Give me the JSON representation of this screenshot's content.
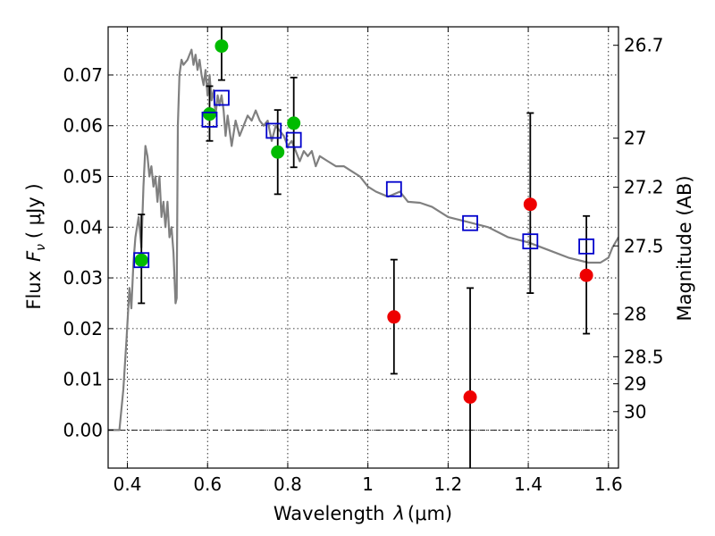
{
  "chart_data": {
    "type": "scatter",
    "xlabel_text": "Wavelength",
    "xlabel_symbol": "λ",
    "xlabel_unit": "(μm)",
    "ylabel_text": "Flux",
    "ylabel_symbol": "F",
    "ylabel_subscript": "ν",
    "ylabel_unit": "( μJy )",
    "y2label": "Magnitude (AB)",
    "xlim": [
      0.352,
      1.625
    ],
    "ylim": [
      -0.0075,
      0.0795
    ],
    "grid": "dotted",
    "x_ticks": [
      0.4,
      0.6,
      0.8,
      1.0,
      1.2,
      1.4,
      1.6
    ],
    "x_tick_labels": [
      "0.4",
      "0.6",
      "0.8",
      "1",
      "1.2",
      "1.4",
      "1.6"
    ],
    "y_ticks": [
      0.0,
      0.01,
      0.02,
      0.03,
      0.04,
      0.05,
      0.06,
      0.07
    ],
    "y_tick_labels": [
      "0.00",
      "0.01",
      "0.02",
      "0.03",
      "0.04",
      "0.05",
      "0.06",
      "0.07"
    ],
    "magnitude_ticks": [
      26.7,
      27,
      27.2,
      27.5,
      28,
      28.5,
      29,
      30
    ],
    "magnitude_tick_labels": [
      "26.7",
      "27",
      "27.2",
      "27.5",
      "28",
      "28.5",
      "29",
      "30"
    ],
    "colors": {
      "model": "#808080",
      "green_points": "#00bb00",
      "red_points": "#ee0000",
      "model_squares": "#0000cc",
      "errorbars": "#000000"
    },
    "series": [
      {
        "name": "SED model spectrum",
        "kind": "line",
        "x": [
          0.352,
          0.38,
          0.39,
          0.398,
          0.405,
          0.41,
          0.415,
          0.42,
          0.428,
          0.435,
          0.44,
          0.445,
          0.45,
          0.455,
          0.46,
          0.465,
          0.47,
          0.475,
          0.48,
          0.485,
          0.49,
          0.495,
          0.5,
          0.505,
          0.51,
          0.515,
          0.52,
          0.523,
          0.526,
          0.53,
          0.535,
          0.54,
          0.55,
          0.56,
          0.565,
          0.57,
          0.575,
          0.58,
          0.585,
          0.59,
          0.595,
          0.6,
          0.605,
          0.61,
          0.615,
          0.62,
          0.625,
          0.63,
          0.635,
          0.64,
          0.645,
          0.65,
          0.66,
          0.67,
          0.68,
          0.69,
          0.7,
          0.71,
          0.72,
          0.73,
          0.74,
          0.75,
          0.76,
          0.77,
          0.78,
          0.79,
          0.8,
          0.81,
          0.82,
          0.83,
          0.84,
          0.85,
          0.86,
          0.87,
          0.88,
          0.9,
          0.92,
          0.94,
          0.96,
          0.98,
          1.0,
          1.02,
          1.05,
          1.08,
          1.1,
          1.13,
          1.16,
          1.2,
          1.25,
          1.3,
          1.35,
          1.4,
          1.45,
          1.5,
          1.55,
          1.58,
          1.6,
          1.61,
          1.625
        ],
        "y": [
          0.0,
          0.0,
          0.008,
          0.018,
          0.028,
          0.024,
          0.033,
          0.038,
          0.042,
          0.036,
          0.048,
          0.056,
          0.054,
          0.05,
          0.052,
          0.048,
          0.05,
          0.045,
          0.05,
          0.042,
          0.045,
          0.04,
          0.045,
          0.038,
          0.04,
          0.035,
          0.025,
          0.026,
          0.06,
          0.07,
          0.073,
          0.072,
          0.073,
          0.075,
          0.072,
          0.074,
          0.071,
          0.073,
          0.07,
          0.068,
          0.071,
          0.066,
          0.07,
          0.065,
          0.067,
          0.062,
          0.066,
          0.064,
          0.066,
          0.063,
          0.058,
          0.062,
          0.056,
          0.061,
          0.058,
          0.06,
          0.062,
          0.061,
          0.063,
          0.061,
          0.06,
          0.061,
          0.057,
          0.06,
          0.059,
          0.058,
          0.056,
          0.057,
          0.055,
          0.053,
          0.055,
          0.054,
          0.055,
          0.052,
          0.054,
          0.053,
          0.052,
          0.052,
          0.051,
          0.05,
          0.048,
          0.047,
          0.046,
          0.047,
          0.045,
          0.0448,
          0.044,
          0.042,
          0.041,
          0.04,
          0.038,
          0.037,
          0.0355,
          0.034,
          0.033,
          0.033,
          0.034,
          0.036,
          0.038
        ]
      },
      {
        "name": "Green observed points",
        "kind": "points",
        "x": [
          0.435,
          0.605,
          0.635,
          0.775,
          0.815
        ],
        "y": [
          0.0335,
          0.0623,
          0.0757,
          0.0548,
          0.0605
        ],
        "yerr_low": [
          0.0085,
          0.0053,
          0.0067,
          0.0083,
          0.0087
        ],
        "yerr_high": [
          0.009,
          0.0055,
          0.007,
          0.0083,
          0.009
        ]
      },
      {
        "name": "Red observed points",
        "kind": "points",
        "x": [
          1.065,
          1.255,
          1.405,
          1.545
        ],
        "y": [
          0.0223,
          0.0065,
          0.0445,
          0.0305
        ],
        "yerr_low": [
          0.0112,
          0.0145,
          0.0175,
          0.0115
        ],
        "yerr_high": [
          0.0113,
          0.0215,
          0.018,
          0.0117
        ]
      },
      {
        "name": "Model band fluxes",
        "kind": "squares",
        "x": [
          0.435,
          0.605,
          0.635,
          0.765,
          0.815,
          1.065,
          1.255,
          1.405,
          1.545
        ],
        "y": [
          0.0335,
          0.0612,
          0.0655,
          0.059,
          0.0572,
          0.0475,
          0.0408,
          0.0372,
          0.0362
        ]
      }
    ]
  }
}
